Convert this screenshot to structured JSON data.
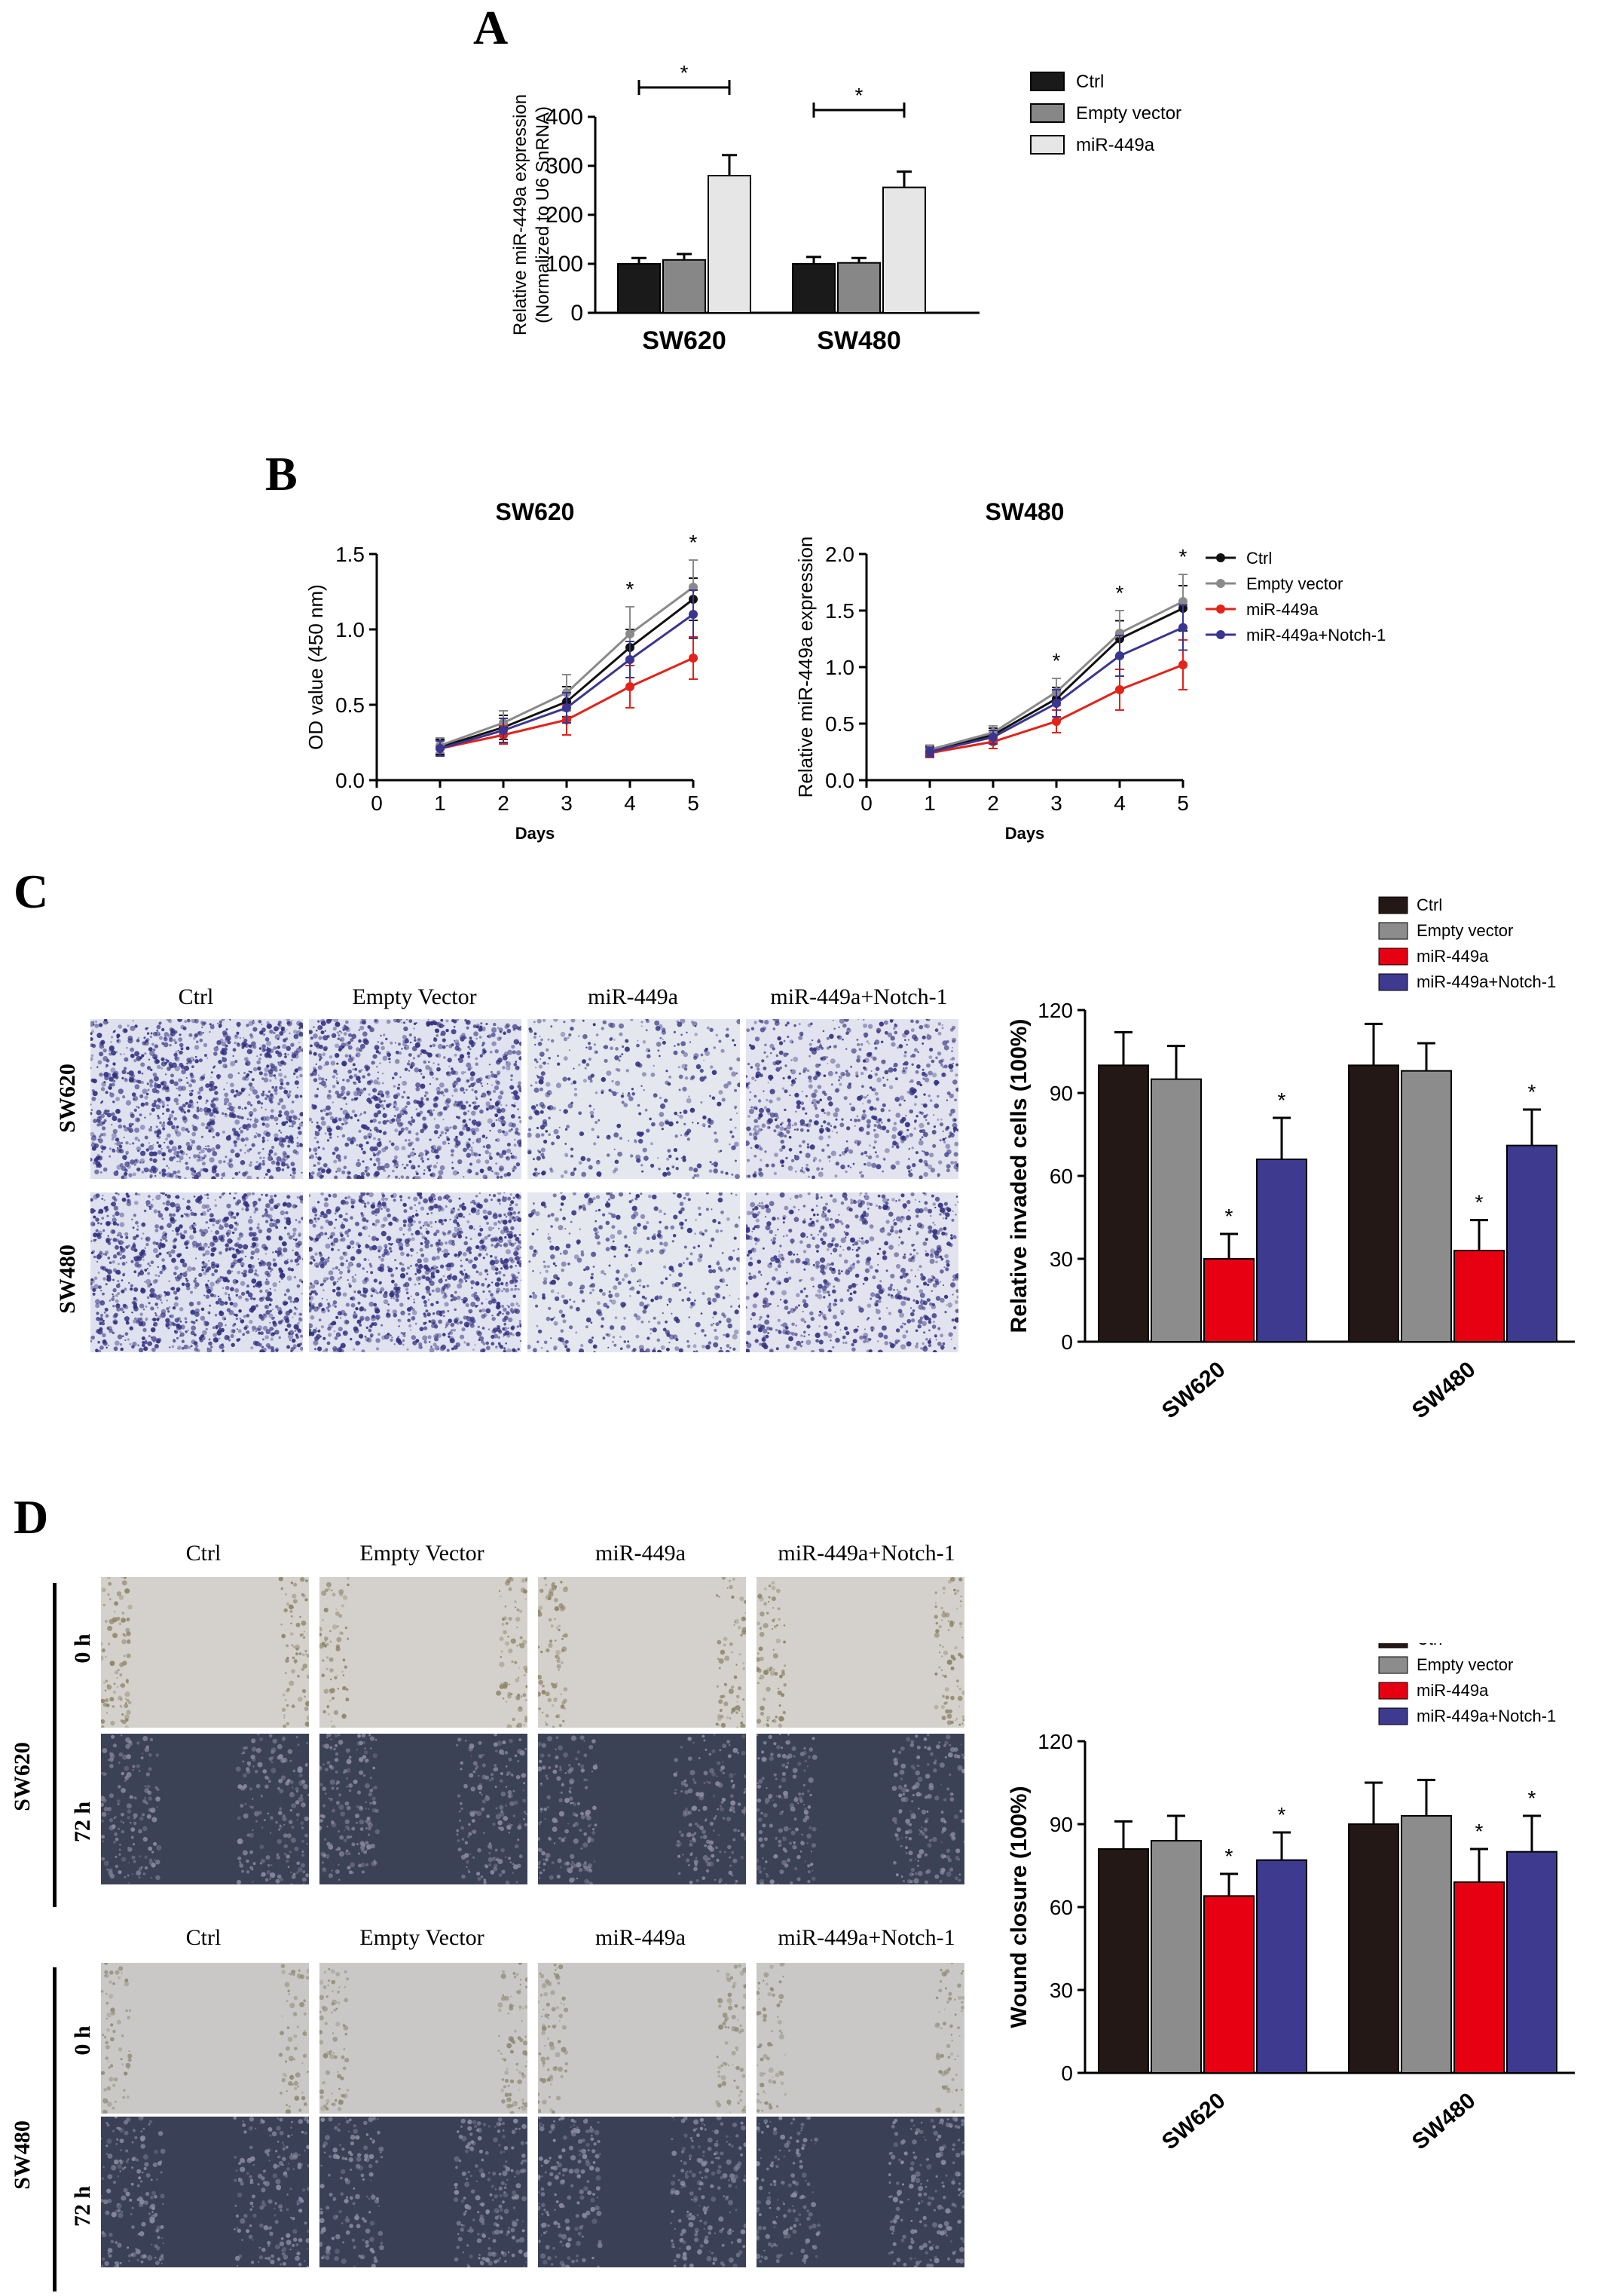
{
  "panels": {
    "a": "A",
    "b": "B",
    "c": "C",
    "d": "D"
  },
  "chart_data": [
    {
      "id": "A",
      "type": "bar",
      "ylabel_line1": "Relative miR-449a expression",
      "ylabel_line2": "(Normalized to U6 SnRNA)",
      "ylim": [
        0,
        400
      ],
      "yticks": [
        "0",
        "100",
        "200",
        "300",
        "400"
      ],
      "categories": [
        "SW620",
        "SW480"
      ],
      "series": [
        {
          "name": "Ctrl",
          "color": "#1a1a1a",
          "values": [
            100,
            100
          ],
          "errors": [
            12,
            14
          ]
        },
        {
          "name": "Empty vector",
          "color": "#878787",
          "values": [
            108,
            102
          ],
          "errors": [
            12,
            10
          ]
        },
        {
          "name": "miR-449a",
          "color": "#e6e6e6",
          "values": [
            280,
            256
          ],
          "errors": [
            42,
            32
          ]
        }
      ],
      "significance": [
        "*",
        "*"
      ],
      "legend": "top-right"
    },
    {
      "id": "B-left",
      "type": "line",
      "title": "SW620",
      "xlabel": "Days",
      "ylabel": "OD value (450 nm)",
      "xticks": [
        "0",
        "1",
        "2",
        "3",
        "4",
        "5"
      ],
      "yticks": [
        "0.0",
        "0.5",
        "1.0",
        "1.5"
      ],
      "xlim": [
        0,
        5
      ],
      "ylim": [
        0,
        1.5
      ],
      "x": [
        1,
        2,
        3,
        4,
        5
      ],
      "series": [
        {
          "name": "Ctrl",
          "color": "#111111",
          "values": [
            0.22,
            0.35,
            0.52,
            0.88,
            1.2
          ],
          "errors": [
            0.05,
            0.08,
            0.1,
            0.12,
            0.14
          ]
        },
        {
          "name": "Empty vector",
          "color": "#8a8a8a",
          "values": [
            0.23,
            0.38,
            0.58,
            0.97,
            1.28
          ],
          "errors": [
            0.05,
            0.08,
            0.12,
            0.18,
            0.18
          ]
        },
        {
          "name": "miR-449a",
          "color": "#e32219",
          "values": [
            0.21,
            0.3,
            0.4,
            0.62,
            0.81
          ],
          "errors": [
            0.05,
            0.06,
            0.1,
            0.14,
            0.14
          ]
        },
        {
          "name": "miR-449a+Notch-1",
          "color": "#3a3591",
          "values": [
            0.21,
            0.33,
            0.48,
            0.8,
            1.1
          ],
          "errors": [
            0.05,
            0.08,
            0.1,
            0.12,
            0.16
          ]
        }
      ],
      "significance_x": [
        4,
        5
      ],
      "significance": [
        "*",
        "*"
      ]
    },
    {
      "id": "B-right",
      "type": "line",
      "title": "SW480",
      "xlabel": "Days",
      "ylabel": "Relative miR-449a expression",
      "xticks": [
        "0",
        "1",
        "2",
        "3",
        "4",
        "5"
      ],
      "yticks": [
        "0.0",
        "0.5",
        "1.0",
        "1.5",
        "2.0"
      ],
      "xlim": [
        0,
        5
      ],
      "ylim": [
        0,
        2.0
      ],
      "x": [
        1,
        2,
        3,
        4,
        5
      ],
      "series": [
        {
          "name": "Ctrl",
          "color": "#111111",
          "values": [
            0.26,
            0.4,
            0.72,
            1.25,
            1.52
          ],
          "errors": [
            0.04,
            0.06,
            0.1,
            0.16,
            0.2
          ]
        },
        {
          "name": "Empty vector",
          "color": "#8a8a8a",
          "values": [
            0.27,
            0.42,
            0.78,
            1.3,
            1.58
          ],
          "errors": [
            0.04,
            0.06,
            0.12,
            0.2,
            0.24
          ]
        },
        {
          "name": "miR-449a",
          "color": "#e32219",
          "values": [
            0.24,
            0.34,
            0.52,
            0.8,
            1.02
          ],
          "errors": [
            0.04,
            0.06,
            0.1,
            0.18,
            0.22
          ]
        },
        {
          "name": "miR-449a+Notch-1",
          "color": "#3a3591",
          "values": [
            0.25,
            0.38,
            0.68,
            1.1,
            1.35
          ],
          "errors": [
            0.04,
            0.06,
            0.12,
            0.18,
            0.2
          ]
        }
      ],
      "significance_x": [
        3,
        4,
        5
      ],
      "significance": [
        "*",
        "*",
        "*"
      ],
      "legend": "top-right"
    },
    {
      "id": "C",
      "type": "bar",
      "ylabel": "Relative invaded cells (100%)",
      "ylim": [
        0,
        120
      ],
      "yticks": [
        "0",
        "30",
        "60",
        "90",
        "120"
      ],
      "categories": [
        "SW620",
        "SW480"
      ],
      "series": [
        {
          "name": "Ctrl",
          "color": "#231815",
          "values": [
            100,
            100
          ],
          "errors": [
            12,
            15
          ]
        },
        {
          "name": "Empty vector",
          "color": "#8c8c8c",
          "values": [
            95,
            98
          ],
          "errors": [
            12,
            10
          ]
        },
        {
          "name": "miR-449a",
          "color": "#e60012",
          "values": [
            30,
            33
          ],
          "errors": [
            9,
            11
          ]
        },
        {
          "name": "miR-449a+Notch-1",
          "color": "#3e3a8f",
          "values": [
            66,
            71
          ],
          "errors": [
            15,
            13
          ]
        }
      ],
      "significance_series": [
        "miR-449a",
        "miR-449a+Notch-1"
      ],
      "significance": [
        "*",
        "*"
      ],
      "legend": "top-right"
    },
    {
      "id": "D",
      "type": "bar",
      "ylabel": "Wound closure  (100%)",
      "ylim": [
        0,
        120
      ],
      "yticks": [
        "0",
        "30",
        "60",
        "90",
        "120"
      ],
      "categories": [
        "SW620",
        "SW480"
      ],
      "series": [
        {
          "name": "Ctrl",
          "color": "#231815",
          "values": [
            81,
            90
          ],
          "errors": [
            10,
            15
          ]
        },
        {
          "name": "Empty vector",
          "color": "#8c8c8c",
          "values": [
            84,
            93
          ],
          "errors": [
            9,
            13
          ]
        },
        {
          "name": "miR-449a",
          "color": "#e60012",
          "values": [
            64,
            69
          ],
          "errors": [
            8,
            12
          ]
        },
        {
          "name": "miR-449a+Notch-1",
          "color": "#3e3a8f",
          "values": [
            77,
            80
          ],
          "errors": [
            10,
            13
          ]
        }
      ],
      "significance_series": [
        "miR-449a",
        "miR-449a+Notch-1"
      ],
      "significance": [
        "*",
        "*"
      ],
      "legend": "top-right"
    }
  ],
  "panel_c_images": {
    "columns": [
      "Ctrl",
      "Empty Vector",
      "miR-449a",
      "miR-449a+Notch-1"
    ],
    "rows": [
      "SW620",
      "SW480"
    ]
  },
  "panel_d_images": {
    "columns": [
      "Ctrl",
      "Empty Vector",
      "miR-449a",
      "miR-449a+Notch-1"
    ],
    "groups": [
      "SW620",
      "SW480"
    ],
    "times": [
      "0 h",
      "72 h"
    ]
  }
}
